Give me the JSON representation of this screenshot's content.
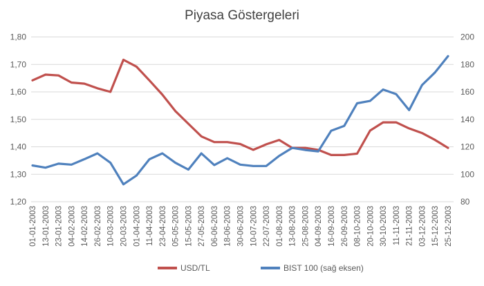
{
  "chart_data": {
    "type": "line",
    "title": "Piyasa Göstergeleri",
    "x": [
      "01-01-2003",
      "13-01-2003",
      "23-01-2003",
      "04-02-2003",
      "14-02-2003",
      "26-02-2003",
      "10-03-2003",
      "20-03-2003",
      "01-04-2003",
      "11-04-2003",
      "23-04-2003",
      "05-05-2003",
      "15-05-2003",
      "27-05-2003",
      "06-06-2003",
      "18-06-2003",
      "30-06-2003",
      "10-07-2003",
      "22-07-2003",
      "01-08-2003",
      "13-08-2003",
      "25-08-2003",
      "04-09-2003",
      "16-09-2003",
      "26-09-2003",
      "08-10-2003",
      "20-10-2003",
      "30-10-2003",
      "11-11-2003",
      "21-11-2003",
      "03-12-2003",
      "15-12-2003",
      "25-12-2003"
    ],
    "y_left": {
      "ticks": [
        "1,20",
        "1,30",
        "1,40",
        "1,50",
        "1,60",
        "1,70",
        "1,80"
      ],
      "range": [
        1.2,
        1.8
      ]
    },
    "y_right": {
      "ticks": [
        "80",
        "100",
        "120",
        "140",
        "160",
        "180",
        "200"
      ],
      "range": [
        80,
        200
      ]
    },
    "grid": true,
    "legend_position": "bottom",
    "series": [
      {
        "name": "USD/TL",
        "axis": "left",
        "color": "#C0504D",
        "values": [
          1.642,
          1.663,
          1.66,
          1.634,
          1.63,
          1.613,
          1.6,
          1.717,
          1.692,
          1.642,
          1.59,
          1.53,
          1.484,
          1.438,
          1.417,
          1.417,
          1.41,
          1.389,
          1.409,
          1.425,
          1.396,
          1.396,
          1.389,
          1.37,
          1.37,
          1.375,
          1.459,
          1.489,
          1.489,
          1.467,
          1.45,
          1.425,
          1.396
        ]
      },
      {
        "name": "BIST 100 (sağ eksen)",
        "axis": "right",
        "color": "#4F81BD",
        "values": [
          106.4,
          104.8,
          107.7,
          107,
          111,
          115.2,
          108.4,
          92.7,
          99,
          110.9,
          115.2,
          108.4,
          103.4,
          115.2,
          106.7,
          111.7,
          107,
          106,
          106,
          113.4,
          119.2,
          117.7,
          116.7,
          131.7,
          135.2,
          151.7,
          153.4,
          161.7,
          158.4,
          146.7,
          165,
          174.2,
          186
        ]
      }
    ]
  }
}
